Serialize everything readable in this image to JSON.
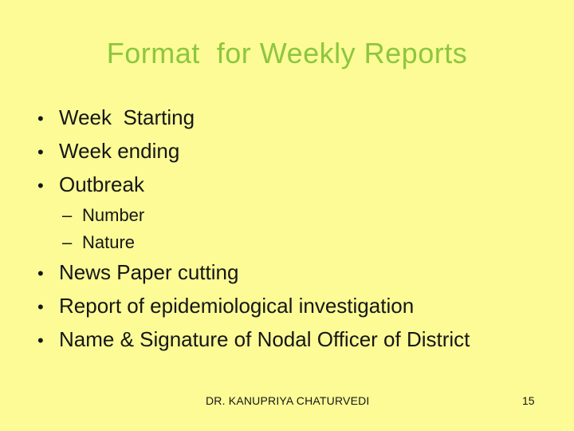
{
  "slide": {
    "title": "Format  for Weekly Reports",
    "markers": {
      "bullet": "•",
      "dash": "–"
    },
    "bullets": [
      {
        "level": 1,
        "text": "Week  Starting"
      },
      {
        "level": 1,
        "text": "Week ending"
      },
      {
        "level": 1,
        "text": "Outbreak"
      },
      {
        "level": 2,
        "text": "Number"
      },
      {
        "level": 2,
        "text": "Nature"
      },
      {
        "level": 1,
        "text": "News Paper cutting"
      },
      {
        "level": 1,
        "text": "Report of epidemiological investigation"
      },
      {
        "level": 1,
        "text": "Name & Signature of Nodal Officer of District"
      }
    ],
    "footer": {
      "author": "DR. KANUPRIYA CHATURVEDI",
      "page_number": "15"
    },
    "colors": {
      "background": "#FCFB96",
      "title_text": "#8DC63F",
      "body_text": "#161616"
    }
  }
}
